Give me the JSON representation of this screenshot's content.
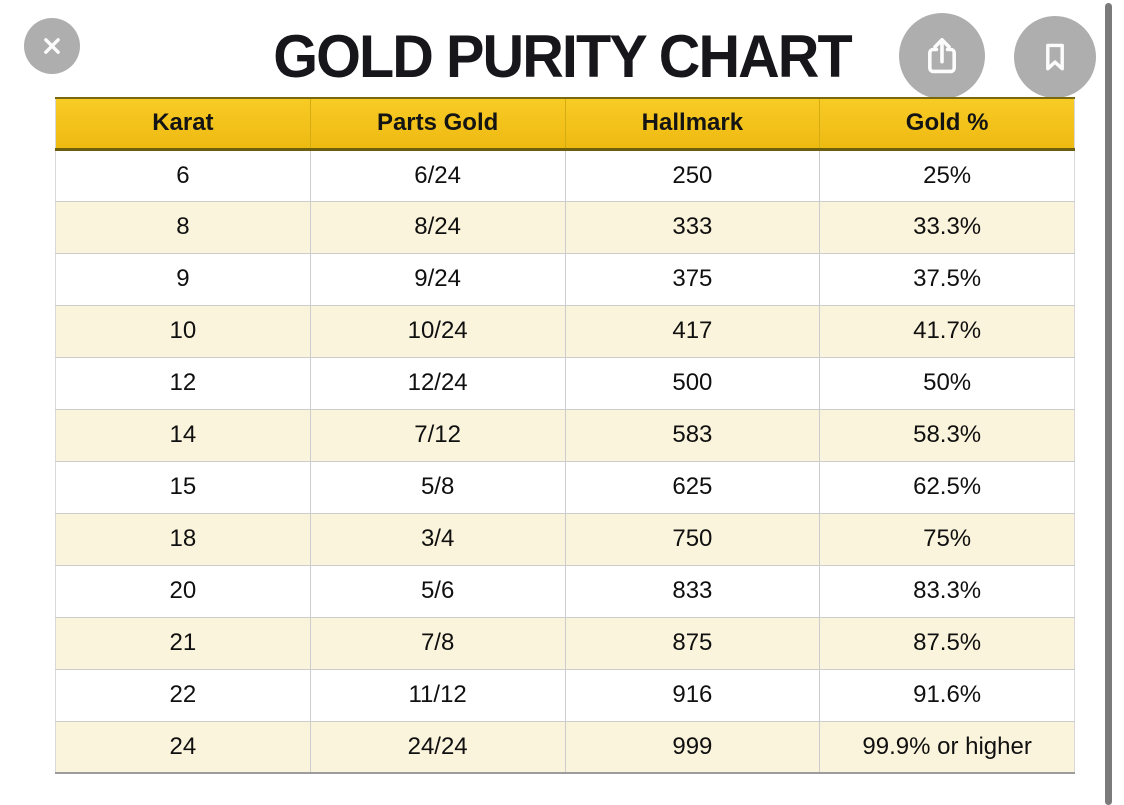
{
  "title": "GOLD PURITY CHART",
  "toolbar": {
    "close_button": "close",
    "share_button": "share",
    "bookmark_button": "bookmark"
  },
  "chart_data": {
    "type": "table",
    "title": "GOLD PURITY CHART",
    "columns": [
      "Karat",
      "Parts Gold",
      "Hallmark",
      "Gold %"
    ],
    "rows": [
      [
        "6",
        "6/24",
        "250",
        "25%"
      ],
      [
        "8",
        "8/24",
        "333",
        "33.3%"
      ],
      [
        "9",
        "9/24",
        "375",
        "37.5%"
      ],
      [
        "10",
        "10/24",
        "417",
        "41.7%"
      ],
      [
        "12",
        "12/24",
        "500",
        "50%"
      ],
      [
        "14",
        "7/12",
        "583",
        "58.3%"
      ],
      [
        "15",
        "5/8",
        "625",
        "62.5%"
      ],
      [
        "18",
        "3/4",
        "750",
        "75%"
      ],
      [
        "20",
        "5/6",
        "833",
        "83.3%"
      ],
      [
        "21",
        "7/8",
        "875",
        "87.5%"
      ],
      [
        "22",
        "11/12",
        "916",
        "91.6%"
      ],
      [
        "24",
        "24/24",
        "999",
        "99.9% or higher"
      ]
    ],
    "layout": {
      "zebra_striping": true,
      "alt_row_color": "#fbf4dc",
      "header_color": "#f3c41d"
    }
  },
  "colors": {
    "header_yellow": "#f3c41d",
    "header_border": "#6e5f10",
    "row_cream": "#fbf4dc",
    "button_gray": "#aeaeae",
    "title_black": "#16161b",
    "scrollbar_gray": "#7b7b7b"
  }
}
